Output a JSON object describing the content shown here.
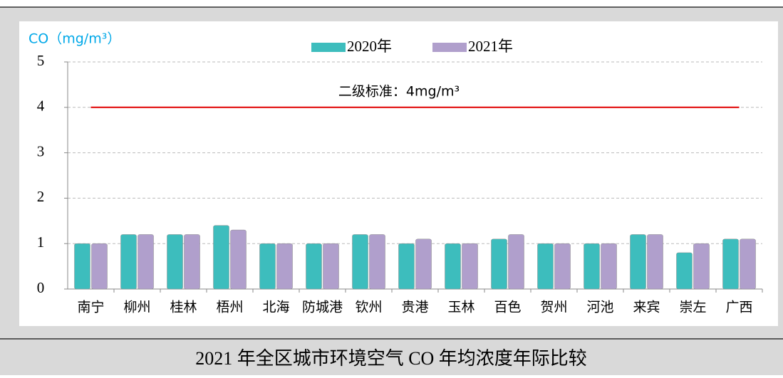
{
  "chart_data": {
    "type": "bar",
    "y_axis_label": "CO（mg/m³）",
    "caption": "2021 年全区城市环境空气 CO 年均浓度年际比较",
    "categories": [
      "南宁",
      "柳州",
      "桂林",
      "梧州",
      "北海",
      "防城港",
      "钦州",
      "贵港",
      "玉林",
      "百色",
      "贺州",
      "河池",
      "来宾",
      "崇左",
      "广西"
    ],
    "series": [
      {
        "name": "2020年",
        "color": "#3dbdbd",
        "values": [
          1.0,
          1.2,
          1.2,
          1.4,
          1.0,
          1.0,
          1.2,
          1.0,
          1.0,
          1.1,
          1.0,
          1.0,
          1.2,
          0.8,
          1.1
        ]
      },
      {
        "name": "2021年",
        "color": "#b09fcc",
        "values": [
          1.0,
          1.2,
          1.2,
          1.3,
          1.0,
          1.0,
          1.2,
          1.1,
          1.0,
          1.2,
          1.0,
          1.0,
          1.2,
          1.0,
          1.1
        ]
      }
    ],
    "standard": {
      "value": 4,
      "label": "二级标准：4mg/m³",
      "color": "#e00000"
    },
    "ylim": [
      0,
      5
    ],
    "yticks": [
      0,
      1,
      2,
      3,
      4,
      5
    ],
    "grid": true,
    "legend": "top"
  }
}
